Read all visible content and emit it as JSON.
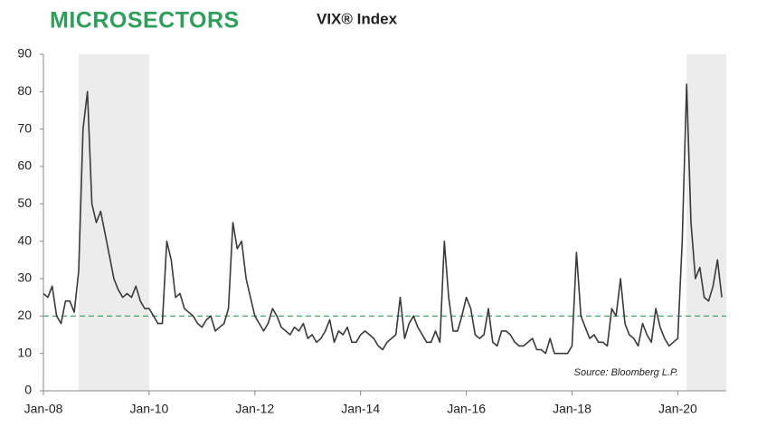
{
  "chart_data": {
    "type": "line",
    "brand": "MICROSECTORS",
    "title": "VIX® Index",
    "source": "Source: Bloomberg L.P.",
    "x": [
      "2008-01",
      "2008-02",
      "2008-03",
      "2008-04",
      "2008-05",
      "2008-06",
      "2008-07",
      "2008-08",
      "2008-09",
      "2008-10",
      "2008-11",
      "2008-12",
      "2009-01",
      "2009-02",
      "2009-03",
      "2009-04",
      "2009-05",
      "2009-06",
      "2009-07",
      "2009-08",
      "2009-09",
      "2009-10",
      "2009-11",
      "2009-12",
      "2010-01",
      "2010-02",
      "2010-03",
      "2010-04",
      "2010-05",
      "2010-06",
      "2010-07",
      "2010-08",
      "2010-09",
      "2010-10",
      "2010-11",
      "2010-12",
      "2011-01",
      "2011-02",
      "2011-03",
      "2011-04",
      "2011-05",
      "2011-06",
      "2011-07",
      "2011-08",
      "2011-09",
      "2011-10",
      "2011-11",
      "2011-12",
      "2012-01",
      "2012-02",
      "2012-03",
      "2012-04",
      "2012-05",
      "2012-06",
      "2012-07",
      "2012-08",
      "2012-09",
      "2012-10",
      "2012-11",
      "2012-12",
      "2013-01",
      "2013-02",
      "2013-03",
      "2013-04",
      "2013-05",
      "2013-06",
      "2013-07",
      "2013-08",
      "2013-09",
      "2013-10",
      "2013-11",
      "2013-12",
      "2014-01",
      "2014-02",
      "2014-03",
      "2014-04",
      "2014-05",
      "2014-06",
      "2014-07",
      "2014-08",
      "2014-09",
      "2014-10",
      "2014-11",
      "2014-12",
      "2015-01",
      "2015-02",
      "2015-03",
      "2015-04",
      "2015-05",
      "2015-06",
      "2015-07",
      "2015-08",
      "2015-09",
      "2015-10",
      "2015-11",
      "2015-12",
      "2016-01",
      "2016-02",
      "2016-03",
      "2016-04",
      "2016-05",
      "2016-06",
      "2016-07",
      "2016-08",
      "2016-09",
      "2016-10",
      "2016-11",
      "2016-12",
      "2017-01",
      "2017-02",
      "2017-03",
      "2017-04",
      "2017-05",
      "2017-06",
      "2017-07",
      "2017-08",
      "2017-09",
      "2017-10",
      "2017-11",
      "2017-12",
      "2018-01",
      "2018-02",
      "2018-03",
      "2018-04",
      "2018-05",
      "2018-06",
      "2018-07",
      "2018-08",
      "2018-09",
      "2018-10",
      "2018-11",
      "2018-12",
      "2019-01",
      "2019-02",
      "2019-03",
      "2019-04",
      "2019-05",
      "2019-06",
      "2019-07",
      "2019-08",
      "2019-09",
      "2019-10",
      "2019-11",
      "2019-12",
      "2020-01",
      "2020-02",
      "2020-03",
      "2020-04",
      "2020-05",
      "2020-06",
      "2020-07",
      "2020-08",
      "2020-09",
      "2020-10",
      "2020-11"
    ],
    "series": [
      {
        "name": "VIX",
        "color": "#3a3a3a",
        "values": [
          26,
          25,
          28,
          20,
          18,
          24,
          24,
          21,
          32,
          70,
          80,
          50,
          45,
          48,
          42,
          36,
          30,
          27,
          25,
          26,
          25,
          28,
          24,
          22,
          22,
          20,
          18,
          18,
          40,
          35,
          25,
          26,
          22,
          21,
          20,
          18,
          17,
          19,
          20,
          16,
          17,
          18,
          22,
          45,
          38,
          40,
          30,
          25,
          20,
          18,
          16,
          18,
          22,
          20,
          17,
          16,
          15,
          17,
          16,
          18,
          14,
          15,
          13,
          14,
          16,
          19,
          13,
          16,
          15,
          17,
          13,
          13,
          15,
          16,
          15,
          14,
          12,
          11,
          13,
          14,
          15,
          25,
          14,
          18,
          20,
          17,
          15,
          13,
          13,
          16,
          13,
          40,
          25,
          16,
          16,
          20,
          25,
          22,
          15,
          14,
          15,
          22,
          13,
          12,
          16,
          16,
          15,
          13,
          12,
          12,
          13,
          14,
          11,
          11,
          10,
          14,
          10,
          10,
          10,
          10,
          12,
          37,
          20,
          17,
          14,
          15,
          13,
          13,
          12,
          22,
          20,
          30,
          18,
          15,
          14,
          12,
          18,
          15,
          13,
          22,
          17,
          14,
          12,
          13,
          14,
          40,
          82,
          45,
          30,
          33,
          25,
          24,
          28,
          35,
          25
        ]
      }
    ],
    "xlim": [
      "2008-01",
      "2020-12"
    ],
    "xticks": [
      {
        "value": "2008-01",
        "label": "Jan-08"
      },
      {
        "value": "2010-01",
        "label": "Jan-10"
      },
      {
        "value": "2012-01",
        "label": "Jan-12"
      },
      {
        "value": "2014-01",
        "label": "Jan-14"
      },
      {
        "value": "2016-01",
        "label": "Jan-16"
      },
      {
        "value": "2018-01",
        "label": "Jan-18"
      },
      {
        "value": "2020-01",
        "label": "Jan-20"
      }
    ],
    "ylim": [
      0,
      90
    ],
    "yticks": [
      0,
      10,
      20,
      30,
      40,
      50,
      60,
      70,
      80,
      90
    ],
    "reference_line": 20,
    "reference_color": "#2e9e5b",
    "shaded_periods": [
      [
        "2008-09",
        "2010-01"
      ],
      [
        "2020-03",
        "2020-12"
      ]
    ],
    "shade_color": "#ececec"
  }
}
